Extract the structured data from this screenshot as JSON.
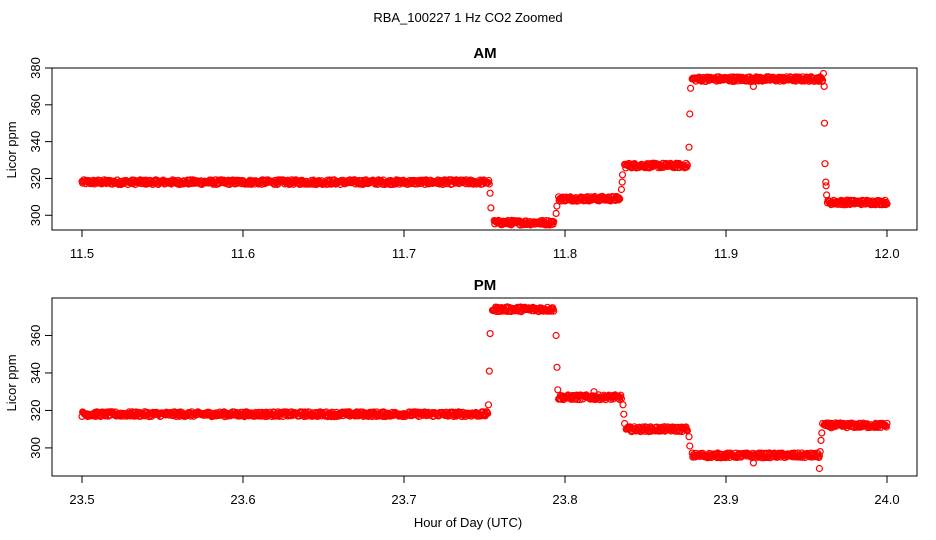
{
  "figure": {
    "title": "RBA_100227  1 Hz CO2 Zoomed",
    "shared_xlabel": "Hour of Day (UTC)"
  },
  "colors": {
    "points": "#ff0000",
    "axes": "#000000"
  },
  "chart_data": [
    {
      "type": "scatter",
      "title": "AM",
      "xlabel": "",
      "ylabel": "Licor ppm",
      "xlim": [
        11.5,
        12.0
      ],
      "ylim": [
        292,
        380
      ],
      "x_ticks": [
        "11.5",
        "11.6",
        "11.7",
        "11.8",
        "11.9",
        "12.0"
      ],
      "x_tick_values": [
        11.5,
        11.6,
        11.7,
        11.8,
        11.9,
        12.0
      ],
      "y_ticks": [
        "300",
        "320",
        "340",
        "360",
        "380"
      ],
      "y_tick_values": [
        300,
        320,
        340,
        360,
        380
      ],
      "grid": false,
      "segments": [
        {
          "x_start": 11.5,
          "x_end": 11.753,
          "y": 318
        },
        {
          "x_start": 11.756,
          "x_end": 11.793,
          "y": 296
        },
        {
          "x_start": 11.796,
          "x_end": 11.834,
          "y": 309
        },
        {
          "x_start": 11.837,
          "x_end": 11.876,
          "y": 327
        },
        {
          "x_start": 11.879,
          "x_end": 11.96,
          "y": 374
        },
        {
          "x_start": 11.963,
          "x_end": 12.0,
          "y": 307
        }
      ],
      "transition_points": [
        {
          "x": 11.7535,
          "y": 312
        },
        {
          "x": 11.754,
          "y": 304
        },
        {
          "x": 11.7945,
          "y": 301
        },
        {
          "x": 11.795,
          "y": 305
        },
        {
          "x": 11.835,
          "y": 314
        },
        {
          "x": 11.8355,
          "y": 318
        },
        {
          "x": 11.8357,
          "y": 322
        },
        {
          "x": 11.877,
          "y": 337
        },
        {
          "x": 11.8775,
          "y": 355
        },
        {
          "x": 11.878,
          "y": 369
        },
        {
          "x": 11.917,
          "y": 370
        },
        {
          "x": 11.9605,
          "y": 377
        },
        {
          "x": 11.961,
          "y": 370
        },
        {
          "x": 11.9612,
          "y": 350
        },
        {
          "x": 11.9615,
          "y": 328
        },
        {
          "x": 11.962,
          "y": 318
        },
        {
          "x": 11.9622,
          "y": 316
        },
        {
          "x": 11.9625,
          "y": 311
        }
      ]
    },
    {
      "type": "scatter",
      "title": "PM",
      "xlabel": "Hour of Day (UTC)",
      "ylabel": "Licor ppm",
      "xlim": [
        23.5,
        24.0
      ],
      "ylim": [
        285,
        380
      ],
      "x_ticks": [
        "23.5",
        "23.6",
        "23.7",
        "23.8",
        "23.9",
        "24.0"
      ],
      "x_tick_values": [
        23.5,
        23.6,
        23.7,
        23.8,
        23.9,
        24.0
      ],
      "y_ticks": [
        "300",
        "320",
        "340",
        "360"
      ],
      "y_tick_values": [
        300,
        320,
        340,
        360
      ],
      "grid": false,
      "segments": [
        {
          "x_start": 23.5,
          "x_end": 23.752,
          "y": 318
        },
        {
          "x_start": 23.755,
          "x_end": 23.793,
          "y": 374
        },
        {
          "x_start": 23.796,
          "x_end": 23.835,
          "y": 327
        },
        {
          "x_start": 23.838,
          "x_end": 23.876,
          "y": 310
        },
        {
          "x_start": 23.879,
          "x_end": 23.958,
          "y": 296
        },
        {
          "x_start": 23.961,
          "x_end": 24.0,
          "y": 312
        }
      ],
      "transition_points": [
        {
          "x": 23.7525,
          "y": 323
        },
        {
          "x": 23.753,
          "y": 341
        },
        {
          "x": 23.7535,
          "y": 361
        },
        {
          "x": 23.7945,
          "y": 360
        },
        {
          "x": 23.795,
          "y": 343
        },
        {
          "x": 23.7955,
          "y": 331
        },
        {
          "x": 23.818,
          "y": 330
        },
        {
          "x": 23.836,
          "y": 323
        },
        {
          "x": 23.8365,
          "y": 318
        },
        {
          "x": 23.837,
          "y": 313
        },
        {
          "x": 23.877,
          "y": 306
        },
        {
          "x": 23.8775,
          "y": 301
        },
        {
          "x": 23.917,
          "y": 292
        },
        {
          "x": 23.958,
          "y": 289
        },
        {
          "x": 23.9585,
          "y": 298
        },
        {
          "x": 23.959,
          "y": 304
        },
        {
          "x": 23.9595,
          "y": 308
        },
        {
          "x": 23.96,
          "y": 313
        }
      ]
    }
  ]
}
